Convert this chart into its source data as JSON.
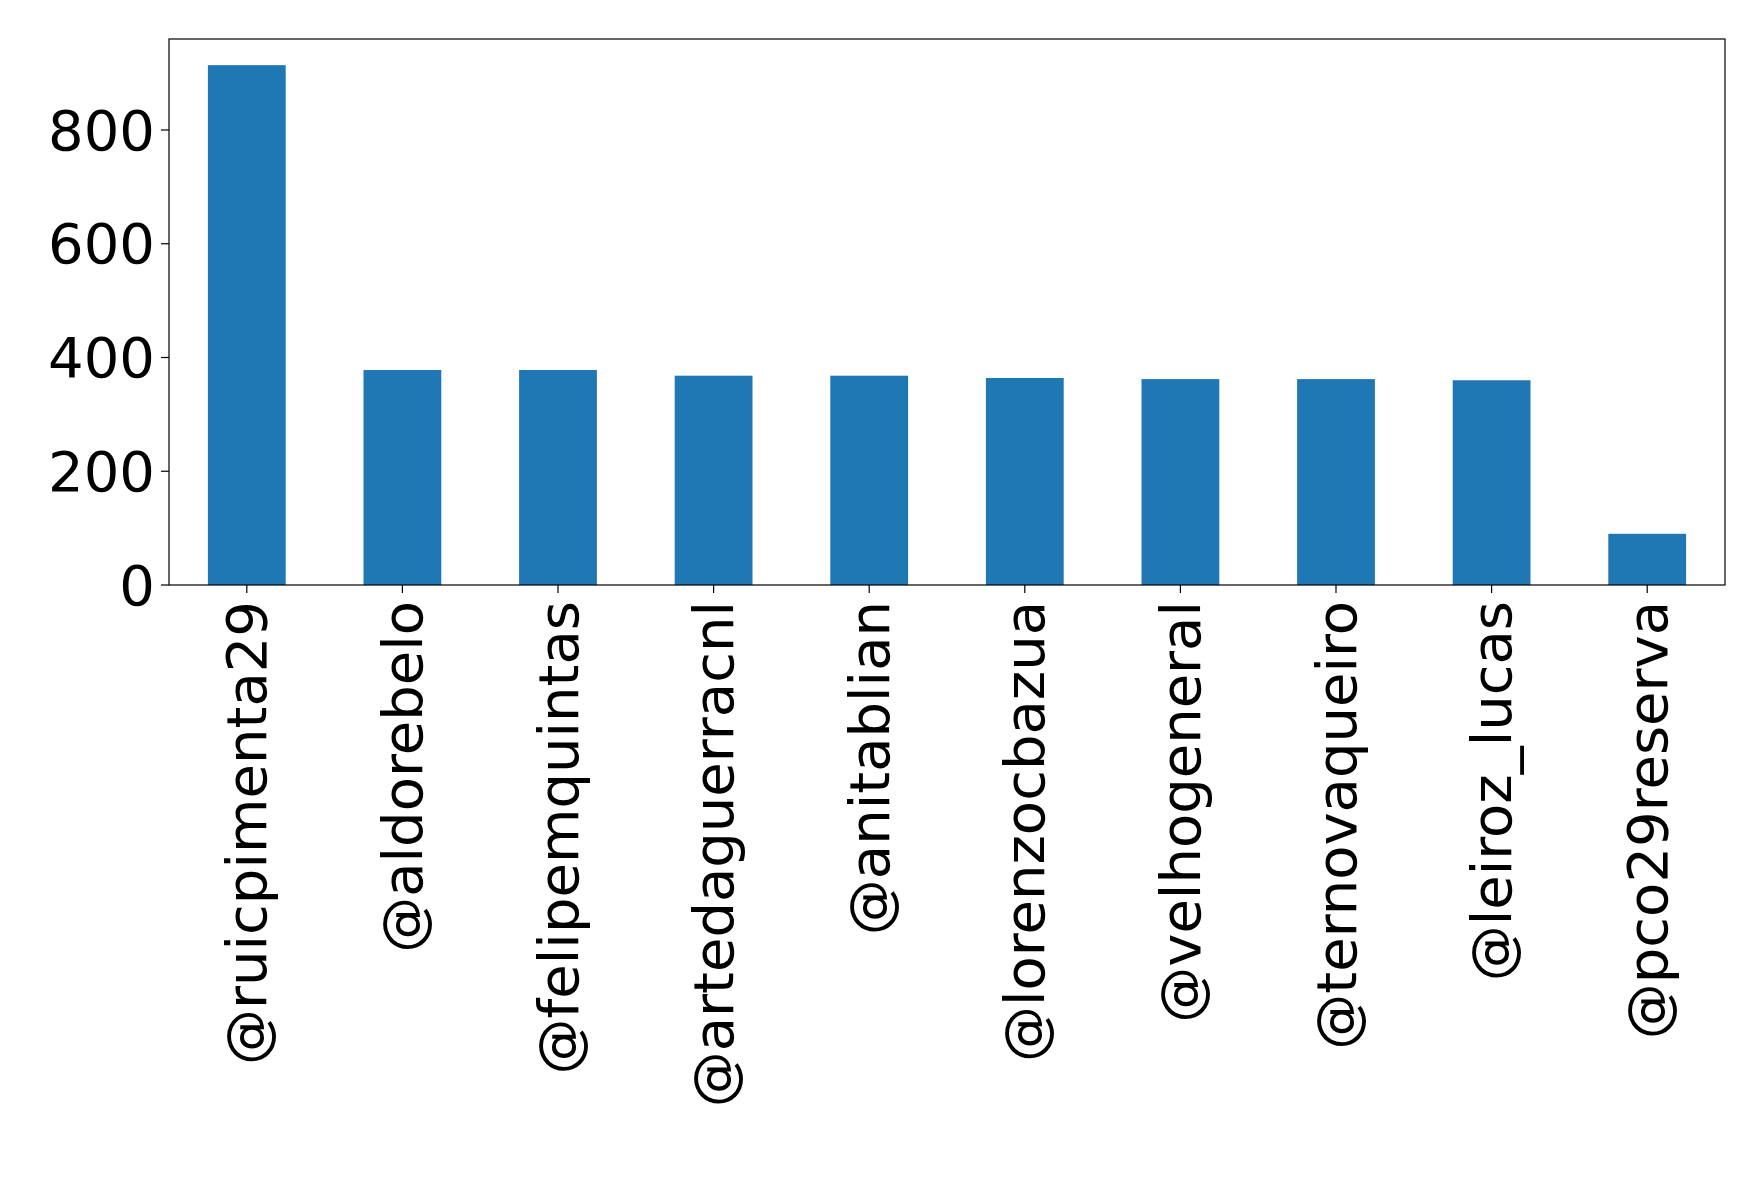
{
  "chart_data": {
    "type": "bar",
    "categories": [
      "@ruicpimenta29",
      "@aldorebelo",
      "@felipemquintas",
      "@artedaguerracnl",
      "@anitablian",
      "@lorenzocbazua",
      "@velhogeneral",
      "@ternovaqueiro",
      "@leiroz_lucas",
      "@pco29reserva"
    ],
    "values": [
      914,
      378,
      378,
      368,
      368,
      364,
      362,
      362,
      360,
      90
    ],
    "color": "#1f77b4",
    "ylim": [
      0,
      960
    ],
    "yticks": [
      0,
      200,
      400,
      600,
      800
    ]
  }
}
